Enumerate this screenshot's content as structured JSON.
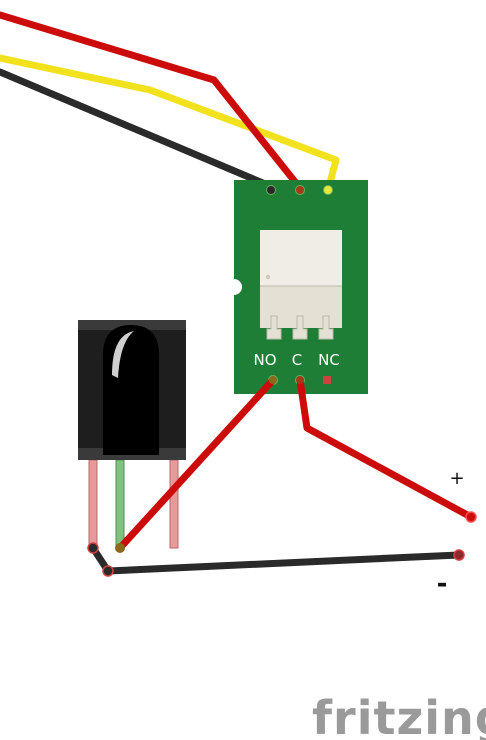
{
  "relay": {
    "pin_no": "NO",
    "pin_c": "C",
    "pin_nc": "NC",
    "board_color": "#1f7e35",
    "component_color": "#e4e0d4"
  },
  "terminals": {
    "plus": "+",
    "minus": "-"
  },
  "wires": [
    {
      "name": "red-wire-signal",
      "color": "#cc0b0b"
    },
    {
      "name": "yellow-wire-vcc",
      "color": "#f2e21e"
    },
    {
      "name": "black-wire-gnd",
      "color": "#2a2a2a"
    },
    {
      "name": "red-wire-no-to-sensor",
      "color": "#cc0b0b"
    },
    {
      "name": "red-wire-c-to-plus",
      "color": "#cc0b0b"
    },
    {
      "name": "black-wire-minus",
      "color": "#2a2a2a"
    }
  ],
  "sensor": {
    "body_color": "#1e1e1e",
    "leg_colors": [
      "#e79a9a",
      "#80c080",
      "#e79a9a"
    ]
  },
  "brand": {
    "logo_text": "fritzing"
  }
}
